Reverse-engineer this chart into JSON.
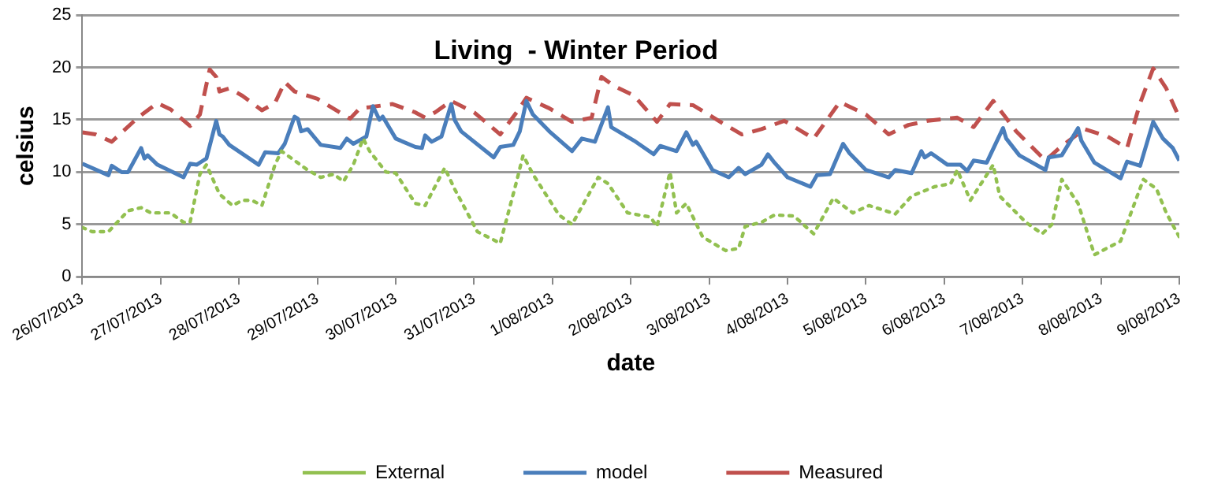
{
  "chart_data": {
    "type": "line",
    "title": "Living  - Winter Period",
    "xlabel": "date",
    "ylabel": "celsius",
    "xlim": [
      "2013-07-26",
      "2013-08-09"
    ],
    "xticks": [
      {
        "value": "2013-07-26",
        "label": "26/07/2013"
      },
      {
        "value": "2013-07-27",
        "label": "27/07/2013"
      },
      {
        "value": "2013-07-28",
        "label": "28/07/2013"
      },
      {
        "value": "2013-07-29",
        "label": "29/07/2013"
      },
      {
        "value": "2013-07-30",
        "label": "30/07/2013"
      },
      {
        "value": "2013-07-31",
        "label": "31/07/2013"
      },
      {
        "value": "2013-08-01",
        "label": "1/08/2013"
      },
      {
        "value": "2013-08-02",
        "label": "2/08/2013"
      },
      {
        "value": "2013-08-03",
        "label": "3/08/2013"
      },
      {
        "value": "2013-08-04",
        "label": "4/08/2013"
      },
      {
        "value": "2013-08-05",
        "label": "5/08/2013"
      },
      {
        "value": "2013-08-06",
        "label": "6/08/2013"
      },
      {
        "value": "2013-08-07",
        "label": "7/08/2013"
      },
      {
        "value": "2013-08-08",
        "label": "8/08/2013"
      },
      {
        "value": "2013-08-09",
        "label": "9/08/2013"
      }
    ],
    "ylim": [
      0,
      25
    ],
    "yticks": [
      0,
      5,
      10,
      15,
      20,
      25
    ],
    "grid": "y",
    "legend": "bottom",
    "marker": "none",
    "series": [
      {
        "name": "External",
        "color": "#92c050",
        "line_style": "dotted",
        "x": [
          "2013-07-26T00:00",
          "2013-07-26T03:00",
          "2013-07-26T08:00",
          "2013-07-26T14:00",
          "2013-07-26T18:00",
          "2013-07-26T21:00",
          "2013-07-27T03:00",
          "2013-07-27T07:00",
          "2013-07-27T09:00",
          "2013-07-27T12:00",
          "2013-07-27T14:00",
          "2013-07-27T18:00",
          "2013-07-27T22:00",
          "2013-07-28T01:00",
          "2013-07-28T04:00",
          "2013-07-28T07:00",
          "2013-07-28T11:00",
          "2013-07-28T13:00",
          "2013-07-28T17:00",
          "2013-07-28T21:00",
          "2013-07-29T01:00",
          "2013-07-29T05:00",
          "2013-07-29T08:00",
          "2013-07-29T11:00",
          "2013-07-29T14:00",
          "2013-07-29T16:00",
          "2013-07-29T21:00",
          "2013-07-30T00:00",
          "2013-07-30T06:00",
          "2013-07-30T09:00",
          "2013-07-30T15:00",
          "2013-07-30T18:00",
          "2013-07-31T01:00",
          "2013-07-31T08:00",
          "2013-07-31T13:00",
          "2013-07-31T15:00",
          "2013-07-31T18:00",
          "2013-08-01T02:00",
          "2013-08-01T06:00",
          "2013-08-01T14:00",
          "2013-08-01T17:00",
          "2013-08-01T23:00",
          "2013-08-02T06:00",
          "2013-08-02T08:00",
          "2013-08-02T12:00",
          "2013-08-02T14:00",
          "2013-08-02T17:00",
          "2013-08-02T22:00",
          "2013-08-03T05:00",
          "2013-08-03T09:00",
          "2013-08-03T11:00",
          "2013-08-03T16:00",
          "2013-08-03T20:00",
          "2013-08-04T02:00",
          "2013-08-04T08:00",
          "2013-08-04T14:00",
          "2013-08-04T20:00",
          "2013-08-05T01:00",
          "2013-08-05T09:00",
          "2013-08-05T14:00",
          "2013-08-05T21:00",
          "2013-08-06T02:00",
          "2013-08-06T04:00",
          "2013-08-06T08:00",
          "2013-08-06T15:00",
          "2013-08-06T17:00",
          "2013-08-07T01:00",
          "2013-08-07T06:00",
          "2013-08-07T09:00",
          "2013-08-07T12:00",
          "2013-08-07T17:00",
          "2013-08-07T22:00",
          "2013-08-08T06:00",
          "2013-08-08T13:00",
          "2013-08-08T17:00",
          "2013-08-08T20:00",
          "2013-08-09T00:00"
        ],
        "values": [
          4.7,
          4.3,
          4.3,
          6.3,
          6.6,
          6.1,
          6.1,
          5.2,
          5.2,
          9.8,
          10.7,
          7.9,
          6.8,
          7.3,
          7.3,
          6.8,
          10.7,
          12.0,
          11.1,
          10.2,
          9.5,
          9.8,
          9.1,
          10.7,
          13.2,
          12.0,
          10.0,
          9.9,
          7.0,
          6.8,
          10.4,
          8.4,
          4.3,
          3.2,
          9.1,
          11.6,
          9.8,
          5.9,
          5.0,
          9.5,
          8.9,
          6.1,
          5.7,
          4.8,
          10.0,
          6.1,
          7.0,
          3.8,
          2.5,
          2.7,
          4.8,
          5.2,
          5.9,
          5.8,
          4.1,
          7.5,
          6.1,
          6.8,
          6.0,
          7.7,
          8.6,
          8.9,
          10.2,
          7.3,
          10.7,
          7.7,
          5.2,
          4.1,
          5.0,
          9.3,
          7.0,
          2.1,
          3.4,
          9.3,
          8.4,
          6.1,
          3.8
        ]
      },
      {
        "name": "model",
        "color": "#4a7ebb",
        "line_style": "solid",
        "x": [
          "2013-07-26T00:00",
          "2013-07-26T08:00",
          "2013-07-26T09:00",
          "2013-07-26T12:00",
          "2013-07-26T14:00",
          "2013-07-26T18:00",
          "2013-07-26T19:00",
          "2013-07-26T20:00",
          "2013-07-26T23:00",
          "2013-07-27T07:00",
          "2013-07-27T09:00",
          "2013-07-27T11:00",
          "2013-07-27T14:00",
          "2013-07-27T17:00",
          "2013-07-27T18:00",
          "2013-07-27T19:00",
          "2013-07-27T21:00",
          "2013-07-28T06:00",
          "2013-07-28T08:00",
          "2013-07-28T12:00",
          "2013-07-28T14:00",
          "2013-07-28T17:00",
          "2013-07-28T18:00",
          "2013-07-28T19:00",
          "2013-07-28T21:00",
          "2013-07-29T01:00",
          "2013-07-29T07:00",
          "2013-07-29T09:00",
          "2013-07-29T11:00",
          "2013-07-29T15:00",
          "2013-07-29T17:00",
          "2013-07-29T19:00",
          "2013-07-29T20:00",
          "2013-07-30T00:00",
          "2013-07-30T06:00",
          "2013-07-30T08:00",
          "2013-07-30T09:00",
          "2013-07-30T11:00",
          "2013-07-30T14:00",
          "2013-07-30T17:00",
          "2013-07-30T18:00",
          "2013-07-30T20:00",
          "2013-07-31T06:00",
          "2013-07-31T08:00",
          "2013-07-31T12:00",
          "2013-07-31T14:00",
          "2013-07-31T16:00",
          "2013-07-31T18:00",
          "2013-07-31T23:00",
          "2013-08-01T06:00",
          "2013-08-01T09:00",
          "2013-08-01T13:00",
          "2013-08-01T17:00",
          "2013-08-01T18:00",
          "2013-08-02T01:00",
          "2013-08-02T07:00",
          "2013-08-02T09:00",
          "2013-08-02T14:00",
          "2013-08-02T17:00",
          "2013-08-02T19:00",
          "2013-08-02T20:00",
          "2013-08-03T01:00",
          "2013-08-03T06:00",
          "2013-08-03T09:00",
          "2013-08-03T11:00",
          "2013-08-03T16:00",
          "2013-08-03T18:00",
          "2013-08-03T20:00",
          "2013-08-04T00:00",
          "2013-08-04T07:00",
          "2013-08-04T09:00",
          "2013-08-04T13:00",
          "2013-08-04T17:00",
          "2013-08-04T19:00",
          "2013-08-05T00:00",
          "2013-08-05T07:00",
          "2013-08-05T09:00",
          "2013-08-05T14:00",
          "2013-08-05T17:00",
          "2013-08-05T18:00",
          "2013-08-05T20:00",
          "2013-08-06T01:00",
          "2013-08-06T05:00",
          "2013-08-06T07:00",
          "2013-08-06T09:00",
          "2013-08-06T13:00",
          "2013-08-06T18:00",
          "2013-08-06T19:00",
          "2013-08-06T23:00",
          "2013-08-07T07:00",
          "2013-08-07T08:00",
          "2013-08-07T12:00",
          "2013-08-07T17:00",
          "2013-08-07T18:00",
          "2013-08-07T22:00",
          "2013-08-08T06:00",
          "2013-08-08T08:00",
          "2013-08-08T12:00",
          "2013-08-08T16:00",
          "2013-08-08T19:00",
          "2013-08-08T22:00",
          "2013-08-09T00:00"
        ],
        "values": [
          10.8,
          9.7,
          10.6,
          10.0,
          10.0,
          12.3,
          11.3,
          11.6,
          10.7,
          9.5,
          10.8,
          10.7,
          11.3,
          14.9,
          13.6,
          13.4,
          12.6,
          10.7,
          11.9,
          11.8,
          12.7,
          15.3,
          15.1,
          13.9,
          14.1,
          12.6,
          12.3,
          13.2,
          12.7,
          13.4,
          16.3,
          15.0,
          15.3,
          13.2,
          12.4,
          12.3,
          13.5,
          12.9,
          13.4,
          16.5,
          15.0,
          13.9,
          11.4,
          12.4,
          12.6,
          13.9,
          16.8,
          15.5,
          13.9,
          12.0,
          13.2,
          12.9,
          16.2,
          14.3,
          13.0,
          11.7,
          12.5,
          12.0,
          13.8,
          12.6,
          12.9,
          10.2,
          9.5,
          10.4,
          9.8,
          10.7,
          11.7,
          10.9,
          9.5,
          8.6,
          9.7,
          9.8,
          12.7,
          11.8,
          10.2,
          9.5,
          10.2,
          9.9,
          12.0,
          11.4,
          11.8,
          10.7,
          10.7,
          10.1,
          11.1,
          10.9,
          14.2,
          13.2,
          11.6,
          10.2,
          11.4,
          11.6,
          14.2,
          13.0,
          10.9,
          9.4,
          11.0,
          10.6,
          14.8,
          13.2,
          12.3,
          11.1
        ]
      },
      {
        "name": "Measured",
        "color": "#c0504d",
        "line_style": "dashed",
        "x": [
          "2013-07-26T00:00",
          "2013-07-26T04:00",
          "2013-07-26T09:00",
          "2013-07-26T17:00",
          "2013-07-26T23:00",
          "2013-07-27T03:00",
          "2013-07-27T09:00",
          "2013-07-27T12:00",
          "2013-07-27T15:00",
          "2013-07-27T17:00",
          "2013-07-27T18:00",
          "2013-07-27T21:00",
          "2013-07-28T01:00",
          "2013-07-28T07:00",
          "2013-07-28T11:00",
          "2013-07-28T14:00",
          "2013-07-28T17:00",
          "2013-07-29T00:00",
          "2013-07-29T10:00",
          "2013-07-29T13:00",
          "2013-07-29T16:00",
          "2013-07-29T23:00",
          "2013-07-30T06:00",
          "2013-07-30T09:00",
          "2013-07-30T12:00",
          "2013-07-30T17:00",
          "2013-07-31T00:00",
          "2013-07-31T08:00",
          "2013-07-31T13:00",
          "2013-07-31T16:00",
          "2013-07-31T23:00",
          "2013-08-01T06:00",
          "2013-08-01T12:00",
          "2013-08-01T15:00",
          "2013-08-01T19:00",
          "2013-08-02T01:00",
          "2013-08-02T08:00",
          "2013-08-02T12:00",
          "2013-08-02T19:00",
          "2013-08-03T05:00",
          "2013-08-03T10:00",
          "2013-08-03T16:00",
          "2013-08-03T23:00",
          "2013-08-04T08:00",
          "2013-08-04T16:00",
          "2013-08-05T00:00",
          "2013-08-05T07:00",
          "2013-08-05T13:00",
          "2013-08-05T19:00",
          "2013-08-06T04:00",
          "2013-08-06T09:00",
          "2013-08-06T15:00",
          "2013-08-06T22:00",
          "2013-08-07T07:00",
          "2013-08-07T12:00",
          "2013-08-07T19:00",
          "2013-08-08T02:00",
          "2013-08-08T08:00",
          "2013-08-08T12:00",
          "2013-08-08T16:00",
          "2013-08-08T20:00",
          "2013-08-09T00:00"
        ],
        "values": [
          13.8,
          13.6,
          12.9,
          15.2,
          16.6,
          16.0,
          14.4,
          15.5,
          19.8,
          19.1,
          17.7,
          18.0,
          17.3,
          15.9,
          16.6,
          18.6,
          17.7,
          17.0,
          15.1,
          16.1,
          16.2,
          16.5,
          15.7,
          15.2,
          15.7,
          16.8,
          15.7,
          13.6,
          15.7,
          17.1,
          16.1,
          14.8,
          15.2,
          19.1,
          18.2,
          17.3,
          14.8,
          16.5,
          16.4,
          14.5,
          13.6,
          14.1,
          14.9,
          13.2,
          16.7,
          15.5,
          13.6,
          14.5,
          14.9,
          15.2,
          14.3,
          16.8,
          13.9,
          11.1,
          12.5,
          14.1,
          13.4,
          12.3,
          16.6,
          19.9,
          18.0,
          15.2
        ]
      }
    ]
  }
}
